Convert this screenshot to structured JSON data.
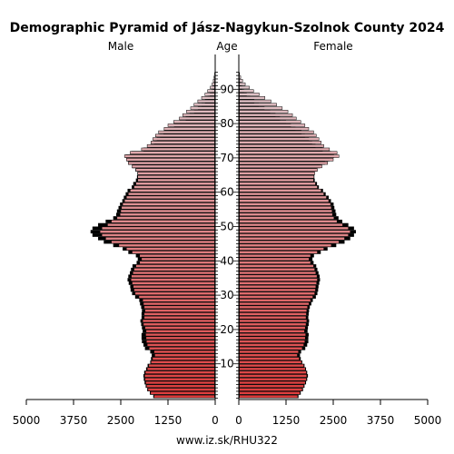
{
  "chart_data": {
    "type": "population-pyramid",
    "title": "Demographic Pyramid of Jász-Nagykun-Szolnok County 2024",
    "male_label": "Male",
    "age_label": "Age",
    "female_label": "Female",
    "source": "www.iz.sk/RHU322",
    "age_ticks": [
      "10",
      "20",
      "30",
      "40",
      "50",
      "60",
      "70",
      "80",
      "90"
    ],
    "male_ticks": [
      "5000",
      "3750",
      "2500",
      "1250",
      "0"
    ],
    "female_ticks": [
      "0",
      "1250",
      "2500",
      "3750",
      "5000"
    ],
    "xlim": [
      0,
      5000
    ],
    "age_range": [
      0,
      94
    ],
    "male": [
      1620,
      1710,
      1780,
      1820,
      1840,
      1860,
      1870,
      1850,
      1800,
      1760,
      1700,
      1660,
      1600,
      1620,
      1750,
      1800,
      1820,
      1830,
      1840,
      1830,
      1860,
      1900,
      1920,
      1880,
      1880,
      1860,
      1880,
      1900,
      1920,
      2020,
      2120,
      2150,
      2170,
      2200,
      2230,
      2220,
      2180,
      2150,
      2100,
      2000,
      1950,
      2000,
      2200,
      2350,
      2550,
      2750,
      2900,
      3000,
      3050,
      3000,
      2850,
      2750,
      2600,
      2520,
      2500,
      2480,
      2450,
      2400,
      2350,
      2300,
      2250,
      2150,
      2100,
      2050,
      2050,
      2050,
      2100,
      2200,
      2300,
      2350,
      2400,
      2250,
      1950,
      1800,
      1700,
      1650,
      1580,
      1500,
      1350,
      1250,
      1100,
      950,
      860,
      760,
      650,
      560,
      460,
      360,
      270,
      200,
      130,
      80,
      50,
      30,
      15
    ],
    "male_prev": [
      1640,
      1730,
      1800,
      1840,
      1870,
      1890,
      1900,
      1880,
      1830,
      1790,
      1720,
      1700,
      1680,
      1720,
      1860,
      1900,
      1940,
      1950,
      1950,
      1920,
      1940,
      1960,
      1980,
      1950,
      1950,
      1940,
      1960,
      1990,
      2010,
      2120,
      2200,
      2240,
      2250,
      2290,
      2320,
      2300,
      2260,
      2230,
      2190,
      2080,
      2050,
      2100,
      2300,
      2450,
      2700,
      2950,
      3100,
      3250,
      3300,
      3250,
      3100,
      2900,
      2700,
      2620,
      2600,
      2560,
      2520,
      2460,
      2420,
      2370,
      2320,
      2210,
      2170,
      2100,
      2070,
      2060,
      2110,
      2200,
      2300,
      2330,
      2370,
      2220,
      1900,
      1720,
      1620,
      1550,
      1460,
      1370,
      1210,
      1090,
      940,
      780,
      680,
      560,
      460,
      360,
      270,
      200,
      140,
      90,
      50,
      30,
      15,
      8,
      4
    ],
    "female": [
      1560,
      1620,
      1680,
      1720,
      1760,
      1790,
      1800,
      1790,
      1760,
      1720,
      1660,
      1600,
      1550,
      1580,
      1680,
      1720,
      1750,
      1760,
      1770,
      1740,
      1760,
      1780,
      1800,
      1780,
      1790,
      1800,
      1820,
      1860,
      1900,
      1960,
      2010,
      2030,
      2040,
      2060,
      2080,
      2070,
      2040,
      2010,
      1980,
      1900,
      1860,
      1900,
      2080,
      2250,
      2450,
      2650,
      2800,
      2900,
      2950,
      2900,
      2750,
      2600,
      2520,
      2480,
      2470,
      2450,
      2430,
      2380,
      2320,
      2250,
      2180,
      2080,
      2030,
      1980,
      1990,
      2010,
      2080,
      2200,
      2350,
      2500,
      2650,
      2600,
      2400,
      2250,
      2180,
      2120,
      2050,
      1980,
      1850,
      1750,
      1640,
      1520,
      1420,
      1300,
      1150,
      1000,
      850,
      690,
      540,
      390,
      280,
      170,
      100,
      50,
      20
    ],
    "female_prev": [
      1580,
      1640,
      1700,
      1740,
      1780,
      1810,
      1830,
      1810,
      1780,
      1740,
      1680,
      1640,
      1620,
      1650,
      1760,
      1810,
      1840,
      1840,
      1850,
      1820,
      1830,
      1850,
      1860,
      1840,
      1850,
      1860,
      1880,
      1920,
      1960,
      2040,
      2080,
      2100,
      2110,
      2130,
      2150,
      2140,
      2110,
      2080,
      2050,
      1980,
      1950,
      1990,
      2170,
      2350,
      2580,
      2800,
      2950,
      3050,
      3100,
      3050,
      2900,
      2740,
      2640,
      2580,
      2560,
      2530,
      2510,
      2440,
      2380,
      2300,
      2230,
      2120,
      2070,
      2010,
      2000,
      2000,
      2060,
      2150,
      2280,
      2400,
      2520,
      2440,
      2220,
      2030,
      1940,
      1860,
      1750,
      1660,
      1500,
      1380,
      1250,
      1090,
      970,
      830,
      680,
      530,
      410,
      300,
      210,
      140,
      90,
      50,
      30,
      15,
      6
    ]
  }
}
